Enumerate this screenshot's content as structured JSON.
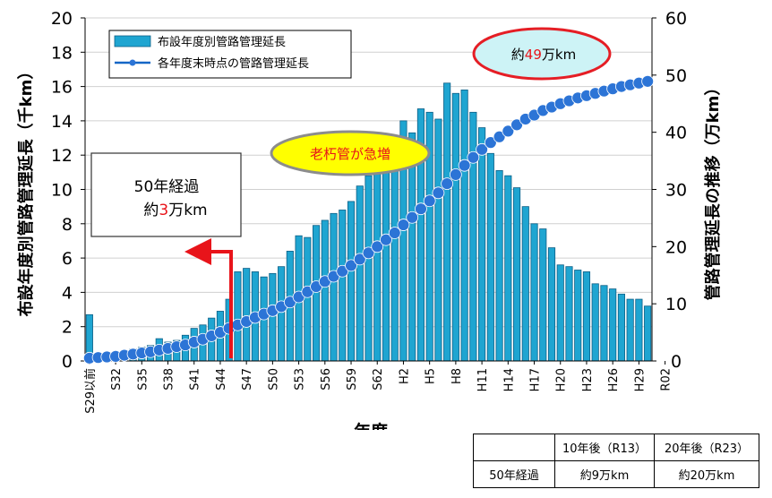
{
  "chart_data": {
    "type": "bar+line",
    "xlabel": "年度",
    "ylabel_left": "布設年度別管路管理延長（千km）",
    "ylabel_right": "管路管理延長の推移（万km）",
    "ylim_left": [
      0,
      20
    ],
    "ylim_right": [
      0,
      60
    ],
    "yticks_left": [
      "0",
      "2",
      "4",
      "6",
      "8",
      "10",
      "12",
      "14",
      "16",
      "18",
      "20"
    ],
    "yticks_right": [
      "0",
      "10",
      "20",
      "30",
      "40",
      "50",
      "60"
    ],
    "x_tick_labels": [
      "S29以前",
      "S32",
      "S35",
      "S38",
      "S41",
      "S44",
      "S47",
      "S50",
      "S53",
      "S56",
      "S59",
      "S62",
      "H2",
      "H5",
      "H8",
      "H11",
      "H14",
      "H17",
      "H20",
      "H23",
      "H26",
      "H29",
      "R02"
    ],
    "legend": {
      "bar": "布設年度別管路管理延長",
      "line": "各年度末時点の管路管理延長"
    },
    "series": [
      {
        "name": "布設年度別管路管理延長",
        "axis": "left",
        "values": [
          2.7,
          0.3,
          0.4,
          0.5,
          0.6,
          0.7,
          0.8,
          0.9,
          1.3,
          1.1,
          1.2,
          1.5,
          1.9,
          2.1,
          2.5,
          2.9,
          3.6,
          5.2,
          5.4,
          5.2,
          4.9,
          5.1,
          5.5,
          6.4,
          7.3,
          7.2,
          7.9,
          8.2,
          8.6,
          8.8,
          9.3,
          10.2,
          10.8,
          11.5,
          12.2,
          12.6,
          14.0,
          13.3,
          14.7,
          14.5,
          14.1,
          16.2,
          15.6,
          15.8,
          14.5,
          13.6,
          12.1,
          11.1,
          10.8,
          10.1,
          9.0,
          8.0,
          7.7,
          6.6,
          5.6,
          5.5,
          5.3,
          5.2,
          4.5,
          4.4,
          4.2,
          3.9,
          3.6,
          3.6,
          3.2
        ]
      },
      {
        "name": "各年度末時点の管路管理延長",
        "axis": "right",
        "values": [
          0.5,
          0.6,
          0.7,
          0.8,
          1.0,
          1.2,
          1.4,
          1.6,
          1.9,
          2.2,
          2.5,
          2.8,
          3.3,
          3.8,
          4.4,
          5.0,
          5.7,
          6.3,
          6.9,
          7.6,
          8.2,
          8.8,
          9.5,
          10.3,
          11.2,
          12.1,
          13.0,
          13.9,
          14.8,
          15.7,
          16.7,
          17.8,
          18.9,
          20.0,
          21.2,
          22.4,
          23.8,
          25.1,
          26.6,
          28.0,
          29.4,
          31.0,
          32.6,
          34.2,
          35.6,
          37.0,
          38.2,
          39.2,
          40.2,
          41.3,
          42.3,
          43.0,
          43.8,
          44.4,
          45.0,
          45.5,
          46.0,
          46.4,
          46.8,
          47.2,
          47.6,
          48.0,
          48.3,
          48.6,
          48.9
        ]
      }
    ],
    "annotations": {
      "callout_49_prefix": "約",
      "callout_49_number": "49",
      "callout_49_suffix": "万km",
      "rapid_increase": "老朽管が急増",
      "box_line1": "50年経過",
      "box_line2_prefix": "約",
      "box_line2_number": "3",
      "box_line2_suffix": "万km"
    },
    "colors": {
      "bar_fill": "#1fa5d1",
      "bar_stroke": "#0d5f86",
      "line": "#1466c6",
      "marker": "#2c74d6",
      "red": "#e8141a",
      "callout_49_fill": "#cdf3f6",
      "callout_49_stroke": "#e51e25",
      "rapid_fill": "#ffff00",
      "rapid_stroke": "#8c8c8c"
    }
  },
  "table": {
    "header": [
      "",
      "10年後（R13）",
      "20年後（R23）"
    ],
    "rows": [
      [
        "50年経過",
        "約9万km",
        "約20万km"
      ]
    ]
  }
}
